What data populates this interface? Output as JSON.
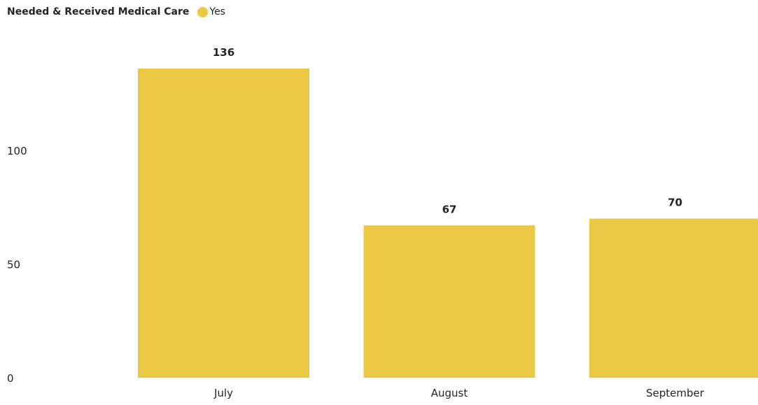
{
  "legend": {
    "title": "Needed & Received Medical Care",
    "items": [
      {
        "label": "Yes",
        "color": "#EBC844"
      }
    ]
  },
  "chart_data": {
    "type": "bar",
    "title": "",
    "xlabel": "",
    "ylabel": "",
    "categories": [
      "July",
      "August",
      "September"
    ],
    "series": [
      {
        "name": "Yes",
        "values": [
          136,
          67,
          70
        ],
        "color": "#EBC844"
      }
    ],
    "ylim": [
      0,
      136
    ],
    "yticks": [
      0,
      50,
      100
    ],
    "yticks_labels": [
      "0",
      "50",
      "100"
    ],
    "grid": false,
    "data_labels": true,
    "legend_position": "top-left"
  }
}
